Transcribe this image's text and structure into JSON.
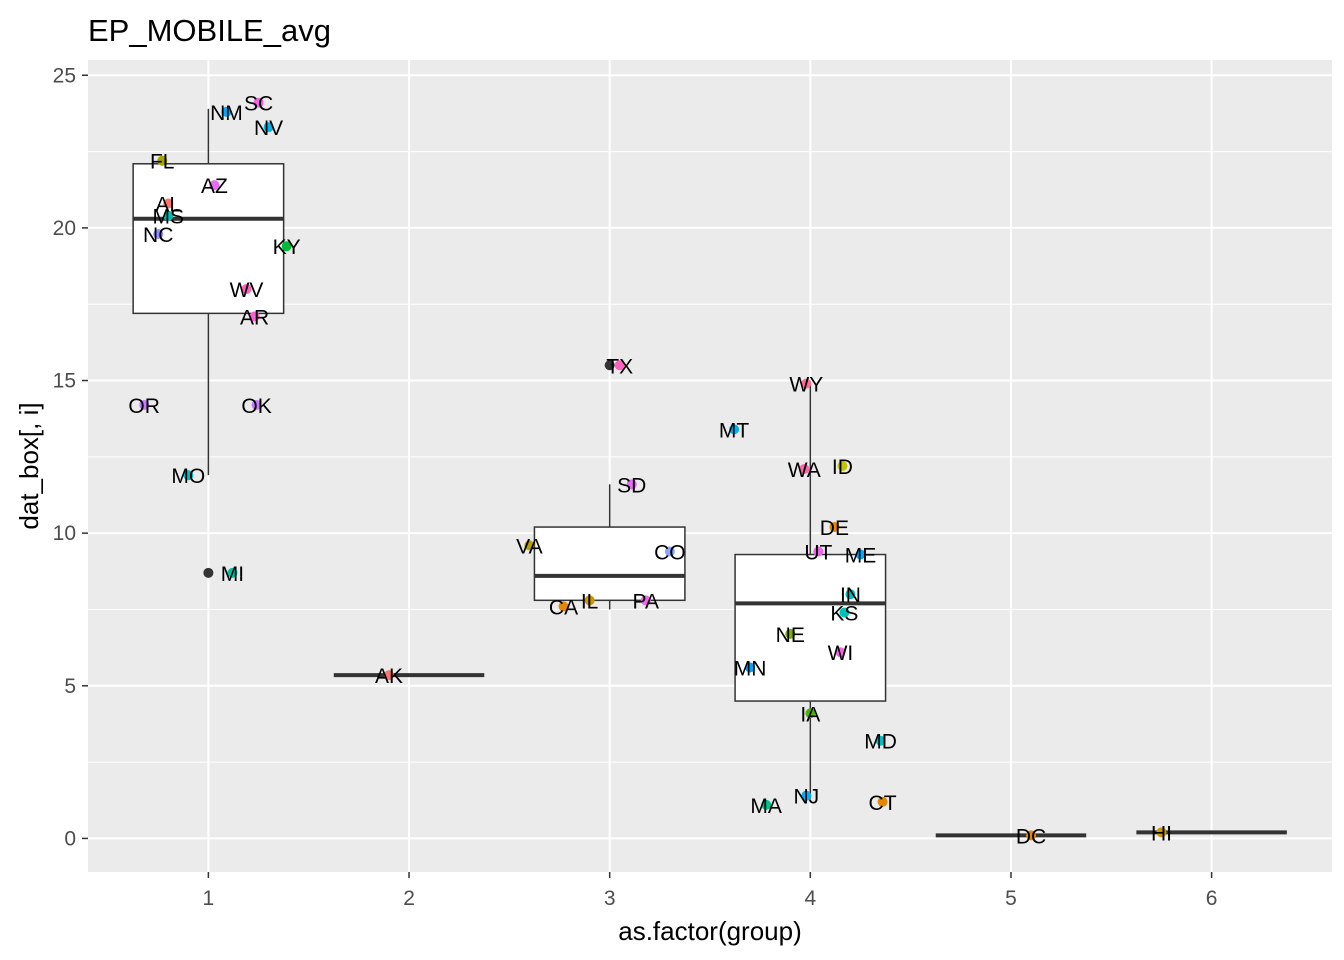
{
  "chart_data": {
    "type": "box+scatter",
    "title": "EP_MOBILE_avg",
    "xlabel": "as.factor(group)",
    "ylabel": "dat_box[, i]",
    "categories": [
      "1",
      "2",
      "3",
      "4",
      "5",
      "6"
    ],
    "x_ticks": [
      "1",
      "2",
      "3",
      "4",
      "5",
      "6"
    ],
    "y_ticks": [
      "0",
      "5",
      "10",
      "15",
      "20",
      "25"
    ],
    "xlim": [
      0.4,
      6.6
    ],
    "ylim": [
      -1.1,
      25.5
    ],
    "grid": true,
    "background": "#ebebeb",
    "boxes": [
      {
        "group": 1,
        "lower_whisker": 11.9,
        "q1": 17.2,
        "median": 20.3,
        "q3": 22.1,
        "upper_whisker": 23.9,
        "outliers": [
          8.7
        ]
      },
      {
        "group": 2,
        "lower_whisker": 5.35,
        "q1": 5.35,
        "median": 5.35,
        "q3": 5.35,
        "upper_whisker": 5.35,
        "outliers": []
      },
      {
        "group": 3,
        "lower_whisker": 7.5,
        "q1": 7.8,
        "median": 8.6,
        "q3": 10.2,
        "upper_whisker": 11.6,
        "outliers": [
          15.5
        ]
      },
      {
        "group": 4,
        "lower_whisker": 1.3,
        "q1": 4.5,
        "median": 7.7,
        "q3": 9.3,
        "upper_whisker": 14.9,
        "outliers": []
      },
      {
        "group": 5,
        "lower_whisker": 0.1,
        "q1": 0.1,
        "median": 0.1,
        "q3": 0.1,
        "upper_whisker": 0.1,
        "outliers": []
      },
      {
        "group": 6,
        "lower_whisker": 0.2,
        "q1": 0.2,
        "median": 0.2,
        "q3": 0.2,
        "upper_whisker": 0.2,
        "outliers": []
      }
    ],
    "points": [
      {
        "label": "NM",
        "x": 1.09,
        "y": 23.8,
        "color": "#00a9ff"
      },
      {
        "label": "SC",
        "x": 1.25,
        "y": 24.1,
        "color": "#f564e3"
      },
      {
        "label": "NV",
        "x": 1.3,
        "y": 23.3,
        "color": "#00b8e7"
      },
      {
        "label": "FL",
        "x": 0.77,
        "y": 22.2,
        "color": "#a3a500"
      },
      {
        "label": "AZ",
        "x": 1.03,
        "y": 21.4,
        "color": "#e76bf3"
      },
      {
        "label": "AL",
        "x": 0.8,
        "y": 20.8,
        "color": "#f8766d"
      },
      {
        "label": "MS",
        "x": 0.8,
        "y": 20.4,
        "color": "#00c0af"
      },
      {
        "label": "NC",
        "x": 0.75,
        "y": 19.8,
        "color": "#9590ff"
      },
      {
        "label": "KY",
        "x": 1.39,
        "y": 19.4,
        "color": "#00ba38"
      },
      {
        "label": "WV",
        "x": 1.19,
        "y": 18.0,
        "color": "#ff62bc"
      },
      {
        "label": "AR",
        "x": 1.23,
        "y": 17.1,
        "color": "#fd61d1"
      },
      {
        "label": "OR",
        "x": 0.68,
        "y": 14.2,
        "color": "#c77cff"
      },
      {
        "label": "OK",
        "x": 1.24,
        "y": 14.2,
        "color": "#c77cff"
      },
      {
        "label": "MO",
        "x": 0.9,
        "y": 11.9,
        "color": "#00bfc4"
      },
      {
        "label": "MI",
        "x": 1.12,
        "y": 8.7,
        "color": "#00c19f"
      },
      {
        "label": "AK",
        "x": 1.9,
        "y": 5.35,
        "color": "#f8766d"
      },
      {
        "label": "TX",
        "x": 3.05,
        "y": 15.5,
        "color": "#ff61c3"
      },
      {
        "label": "MT",
        "x": 3.62,
        "y": 13.4,
        "color": "#00b0f6"
      },
      {
        "label": "SD",
        "x": 3.11,
        "y": 11.6,
        "color": "#e76bf3"
      },
      {
        "label": "VA",
        "x": 2.6,
        "y": 9.6,
        "color": "#b79f00"
      },
      {
        "label": "CO",
        "x": 3.3,
        "y": 9.4,
        "color": "#8fa4ff"
      },
      {
        "label": "CA",
        "x": 2.77,
        "y": 7.6,
        "color": "#e58700"
      },
      {
        "label": "IL",
        "x": 2.9,
        "y": 7.8,
        "color": "#c99800"
      },
      {
        "label": "PA",
        "x": 3.18,
        "y": 7.8,
        "color": "#ef67eb"
      },
      {
        "label": "WY",
        "x": 3.98,
        "y": 14.9,
        "color": "#ff6c91"
      },
      {
        "label": "WA",
        "x": 3.97,
        "y": 12.1,
        "color": "#ff65ae"
      },
      {
        "label": "ID",
        "x": 4.16,
        "y": 12.2,
        "color": "#c4c400"
      },
      {
        "label": "DE",
        "x": 4.12,
        "y": 10.2,
        "color": "#e58700"
      },
      {
        "label": "UT",
        "x": 4.04,
        "y": 9.4,
        "color": "#f066e9"
      },
      {
        "label": "ME",
        "x": 4.25,
        "y": 9.3,
        "color": "#00a9ff"
      },
      {
        "label": "IN",
        "x": 4.2,
        "y": 8.0,
        "color": "#00bfc4"
      },
      {
        "label": "KS",
        "x": 4.17,
        "y": 7.4,
        "color": "#00c0b8"
      },
      {
        "label": "NE",
        "x": 3.9,
        "y": 6.7,
        "color": "#7cae00"
      },
      {
        "label": "WI",
        "x": 4.15,
        "y": 6.1,
        "color": "#f564e3"
      },
      {
        "label": "MN",
        "x": 3.7,
        "y": 5.6,
        "color": "#00a5ff"
      },
      {
        "label": "IA",
        "x": 4.0,
        "y": 4.1,
        "color": "#53b400"
      },
      {
        "label": "MD",
        "x": 4.35,
        "y": 3.2,
        "color": "#00bfc4"
      },
      {
        "label": "NJ",
        "x": 3.98,
        "y": 1.4,
        "color": "#00b0f6"
      },
      {
        "label": "MA",
        "x": 3.78,
        "y": 1.1,
        "color": "#00c08b"
      },
      {
        "label": "CT",
        "x": 4.36,
        "y": 1.2,
        "color": "#e58700"
      },
      {
        "label": "DC",
        "x": 5.1,
        "y": 0.1,
        "color": "#e58700"
      },
      {
        "label": "HI",
        "x": 5.75,
        "y": 0.2,
        "color": "#c99800"
      }
    ]
  }
}
